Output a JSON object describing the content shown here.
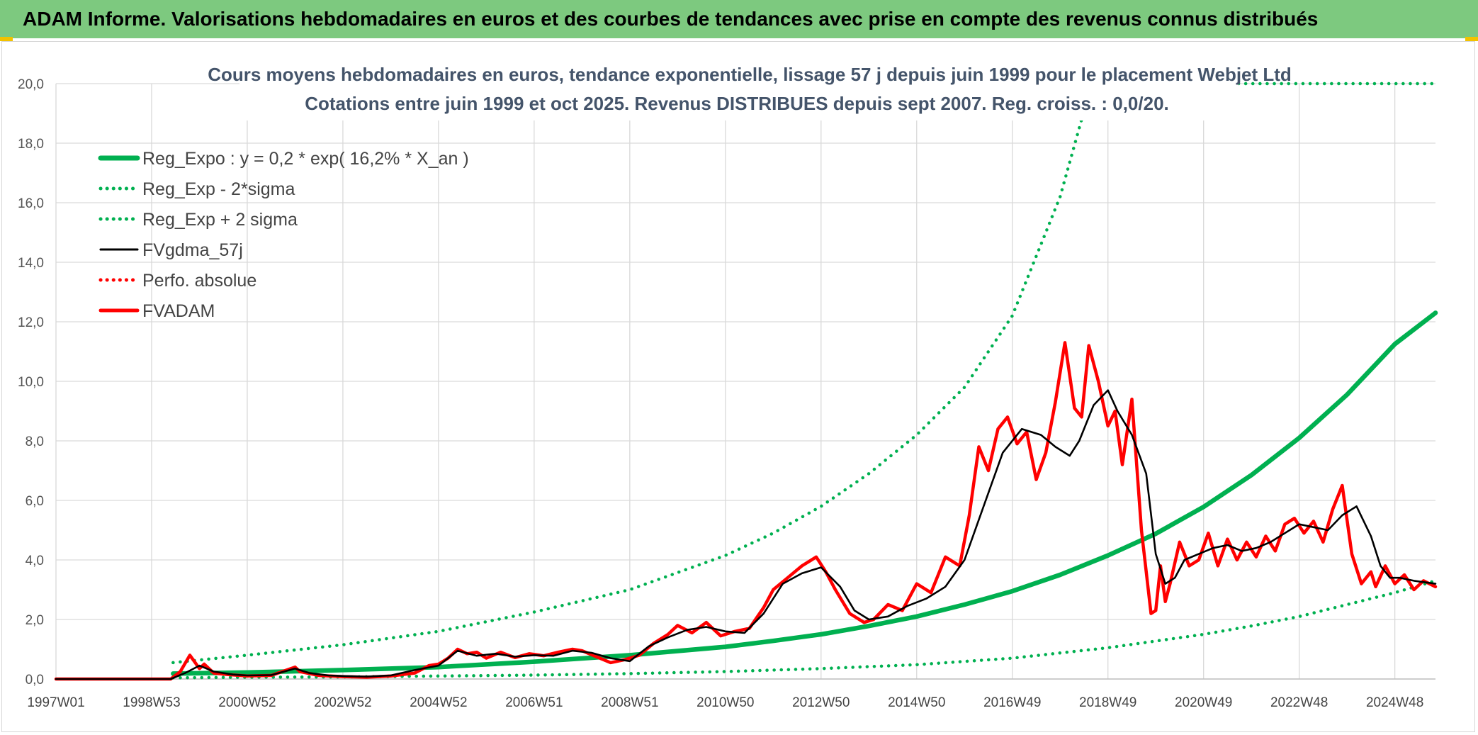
{
  "header": {
    "title": "ADAM Informe. Valorisations hebdomadaires en euros et des courbes de tendances avec prise en compte des revenus connus distribués"
  },
  "colors": {
    "banner": "#7dc97f",
    "reg_green": "#00b050",
    "red": "#ff0000",
    "black": "#000000",
    "title_text": "#44546a"
  },
  "chart_data": {
    "type": "line",
    "title": "Cours moyens hebdomadaires en euros, tendance exponentielle, lissage 57 j depuis juin 1999 pour le placement Webjet Ltd",
    "subtitle": "Cotations entre juin 1999 et oct 2025. Revenus DISTRIBUES depuis sept 2007. Reg. croiss. : 0,0/20.",
    "xlabel": "",
    "ylabel": "",
    "ylim": [
      0,
      20
    ],
    "xlim": [
      1997.0,
      2025.85
    ],
    "y_ticks": [
      "0,0",
      "2,0",
      "4,0",
      "6,0",
      "8,0",
      "10,0",
      "12,0",
      "14,0",
      "16,0",
      "18,0",
      "20,0"
    ],
    "x_ticks": [
      {
        "label": "1997W01",
        "x": 1997.0
      },
      {
        "label": "1998W53",
        "x": 1999.0
      },
      {
        "label": "2000W52",
        "x": 2001.0
      },
      {
        "label": "2002W52",
        "x": 2003.0
      },
      {
        "label": "2004W52",
        "x": 2005.0
      },
      {
        "label": "2006W51",
        "x": 2007.0
      },
      {
        "label": "2008W51",
        "x": 2009.0
      },
      {
        "label": "2010W50",
        "x": 2011.0
      },
      {
        "label": "2012W50",
        "x": 2013.0
      },
      {
        "label": "2014W50",
        "x": 2015.0
      },
      {
        "label": "2016W49",
        "x": 2017.0
      },
      {
        "label": "2018W49",
        "x": 2019.0
      },
      {
        "label": "2020W49",
        "x": 2021.0
      },
      {
        "label": "2022W48",
        "x": 2023.0
      },
      {
        "label": "2024W48",
        "x": 2025.0
      }
    ],
    "legend_position": "top-left",
    "series": [
      {
        "name": "Reg_Expo : y = 0,2 * exp( 16,2% *  X_an )",
        "style": "solid-thick",
        "color": "#00b050",
        "x": [
          1999.45,
          2001,
          2003,
          2005,
          2007,
          2009,
          2011,
          2012,
          2013,
          2014,
          2015,
          2016,
          2017,
          2018,
          2019,
          2020,
          2021,
          2022,
          2023,
          2024,
          2025,
          2025.85
        ],
        "values": [
          0.18,
          0.22,
          0.3,
          0.4,
          0.58,
          0.8,
          1.08,
          1.28,
          1.5,
          1.78,
          2.1,
          2.5,
          2.95,
          3.5,
          4.15,
          4.88,
          5.78,
          6.85,
          8.1,
          9.55,
          11.25,
          12.3
        ]
      },
      {
        "name": "Reg_Exp - 2*sigma",
        "style": "dotted",
        "color": "#00b050",
        "x": [
          1999.45,
          2001,
          2003,
          2005,
          2007,
          2009,
          2011,
          2013,
          2015,
          2017,
          2019,
          2021,
          2022,
          2023,
          2024,
          2025,
          2025.85
        ],
        "values": [
          0.04,
          0.06,
          0.07,
          0.1,
          0.13,
          0.18,
          0.25,
          0.35,
          0.48,
          0.7,
          1.05,
          1.5,
          1.78,
          2.1,
          2.5,
          2.9,
          3.3
        ]
      },
      {
        "name": "Reg_Exp + 2 sigma",
        "style": "dotted",
        "color": "#00b050",
        "x": [
          1999.45,
          2001,
          2003,
          2005,
          2007,
          2009,
          2011,
          2012,
          2013,
          2014,
          2015,
          2016,
          2017,
          2018,
          2018.45
        ],
        "values": [
          0.55,
          0.8,
          1.15,
          1.6,
          2.25,
          3.0,
          4.15,
          4.9,
          5.8,
          6.9,
          8.2,
          9.8,
          12.2,
          16.2,
          18.8
        ]
      },
      {
        "name": "FVgdma_57j",
        "style": "solid",
        "color": "#000000",
        "x": [
          1997.0,
          1999.4,
          1999.7,
          2000.0,
          2000.3,
          2000.7,
          2001.0,
          2001.5,
          2002.0,
          2002.3,
          2002.7,
          2003.0,
          2003.5,
          2004.0,
          2004.5,
          2005.0,
          2005.4,
          2005.8,
          2006.2,
          2006.6,
          2007.0,
          2007.4,
          2007.8,
          2008.2,
          2008.6,
          2009.0,
          2009.4,
          2009.8,
          2010.2,
          2010.6,
          2011.0,
          2011.4,
          2011.8,
          2012.2,
          2012.6,
          2013.0,
          2013.4,
          2013.7,
          2014.0,
          2014.4,
          2014.8,
          2015.2,
          2015.6,
          2016.0,
          2016.4,
          2016.8,
          2017.2,
          2017.6,
          2017.9,
          2018.2,
          2018.4,
          2018.7,
          2019.0,
          2019.2,
          2019.5,
          2019.8,
          2020.0,
          2020.2,
          2020.4,
          2020.6,
          2020.9,
          2021.2,
          2021.5,
          2021.8,
          2022.1,
          2022.4,
          2022.7,
          2023.0,
          2023.3,
          2023.6,
          2023.9,
          2024.2,
          2024.5,
          2024.7,
          2024.9,
          2025.1,
          2025.4,
          2025.85
        ],
        "values": [
          0,
          0,
          0.2,
          0.45,
          0.25,
          0.15,
          0.12,
          0.13,
          0.35,
          0.2,
          0.12,
          0.1,
          0.08,
          0.12,
          0.3,
          0.45,
          0.95,
          0.78,
          0.85,
          0.75,
          0.8,
          0.78,
          0.95,
          0.88,
          0.7,
          0.6,
          1.1,
          1.4,
          1.65,
          1.75,
          1.6,
          1.55,
          2.2,
          3.2,
          3.55,
          3.75,
          3.1,
          2.3,
          2.0,
          2.1,
          2.45,
          2.7,
          3.1,
          4.0,
          5.8,
          7.6,
          8.4,
          8.2,
          7.8,
          7.5,
          8.0,
          9.2,
          9.7,
          9.0,
          8.2,
          6.9,
          4.2,
          3.2,
          3.4,
          4.0,
          4.2,
          4.4,
          4.5,
          4.3,
          4.4,
          4.6,
          4.9,
          5.2,
          5.1,
          5.0,
          5.5,
          5.8,
          4.8,
          3.8,
          3.4,
          3.4,
          3.3,
          3.2
        ]
      },
      {
        "name": "Perfo. absolue",
        "style": "dotted",
        "color": "#ff0000",
        "x": [],
        "values": []
      },
      {
        "name": "FVADAM",
        "style": "solid-thick",
        "color": "#ff0000",
        "x": [
          1997.0,
          1999.4,
          1999.6,
          1999.8,
          2000.0,
          2000.1,
          2000.3,
          2000.6,
          2001.0,
          2001.5,
          2002.0,
          2002.1,
          2002.5,
          2003.0,
          2003.5,
          2004.0,
          2004.5,
          2004.8,
          2005.0,
          2005.2,
          2005.4,
          2005.6,
          2005.8,
          2006.0,
          2006.3,
          2006.6,
          2006.9,
          2007.2,
          2007.5,
          2007.8,
          2008.0,
          2008.3,
          2008.6,
          2008.9,
          2009.2,
          2009.5,
          2009.8,
          2010.0,
          2010.3,
          2010.6,
          2010.9,
          2011.2,
          2011.5,
          2011.8,
          2012.0,
          2012.3,
          2012.6,
          2012.9,
          2013.1,
          2013.3,
          2013.6,
          2013.9,
          2014.1,
          2014.4,
          2014.7,
          2015.0,
          2015.3,
          2015.6,
          2015.9,
          2016.1,
          2016.3,
          2016.5,
          2016.7,
          2016.9,
          2017.1,
          2017.3,
          2017.5,
          2017.7,
          2017.9,
          2018.1,
          2018.3,
          2018.45,
          2018.6,
          2018.8,
          2019.0,
          2019.15,
          2019.3,
          2019.5,
          2019.7,
          2019.9,
          2020.0,
          2020.1,
          2020.2,
          2020.3,
          2020.5,
          2020.7,
          2020.9,
          2021.1,
          2021.3,
          2021.5,
          2021.7,
          2021.9,
          2022.1,
          2022.3,
          2022.5,
          2022.7,
          2022.9,
          2023.1,
          2023.3,
          2023.5,
          2023.7,
          2023.9,
          2024.1,
          2024.3,
          2024.5,
          2024.6,
          2024.8,
          2025.0,
          2025.2,
          2025.4,
          2025.6,
          2025.85
        ],
        "values": [
          0,
          0,
          0.25,
          0.8,
          0.35,
          0.5,
          0.2,
          0.15,
          0.1,
          0.12,
          0.4,
          0.25,
          0.12,
          0.08,
          0.06,
          0.1,
          0.2,
          0.45,
          0.5,
          0.7,
          1.0,
          0.85,
          0.9,
          0.7,
          0.9,
          0.72,
          0.85,
          0.78,
          0.9,
          1.0,
          0.95,
          0.75,
          0.55,
          0.65,
          0.8,
          1.2,
          1.5,
          1.8,
          1.55,
          1.9,
          1.45,
          1.6,
          1.7,
          2.4,
          3.0,
          3.4,
          3.8,
          4.1,
          3.6,
          3.0,
          2.2,
          1.9,
          2.0,
          2.5,
          2.3,
          3.2,
          2.9,
          4.1,
          3.8,
          5.5,
          7.8,
          7.0,
          8.4,
          8.8,
          7.9,
          8.3,
          6.7,
          7.6,
          9.3,
          11.3,
          9.1,
          8.8,
          11.2,
          10.0,
          8.5,
          9.0,
          7.2,
          9.4,
          5.0,
          2.2,
          2.3,
          3.8,
          2.6,
          3.2,
          4.6,
          3.8,
          4.0,
          4.9,
          3.8,
          4.7,
          4.0,
          4.6,
          4.1,
          4.8,
          4.3,
          5.2,
          5.4,
          4.9,
          5.3,
          4.6,
          5.7,
          6.5,
          4.2,
          3.2,
          3.6,
          3.1,
          3.8,
          3.2,
          3.5,
          3.0,
          3.3,
          3.1
        ]
      }
    ]
  }
}
